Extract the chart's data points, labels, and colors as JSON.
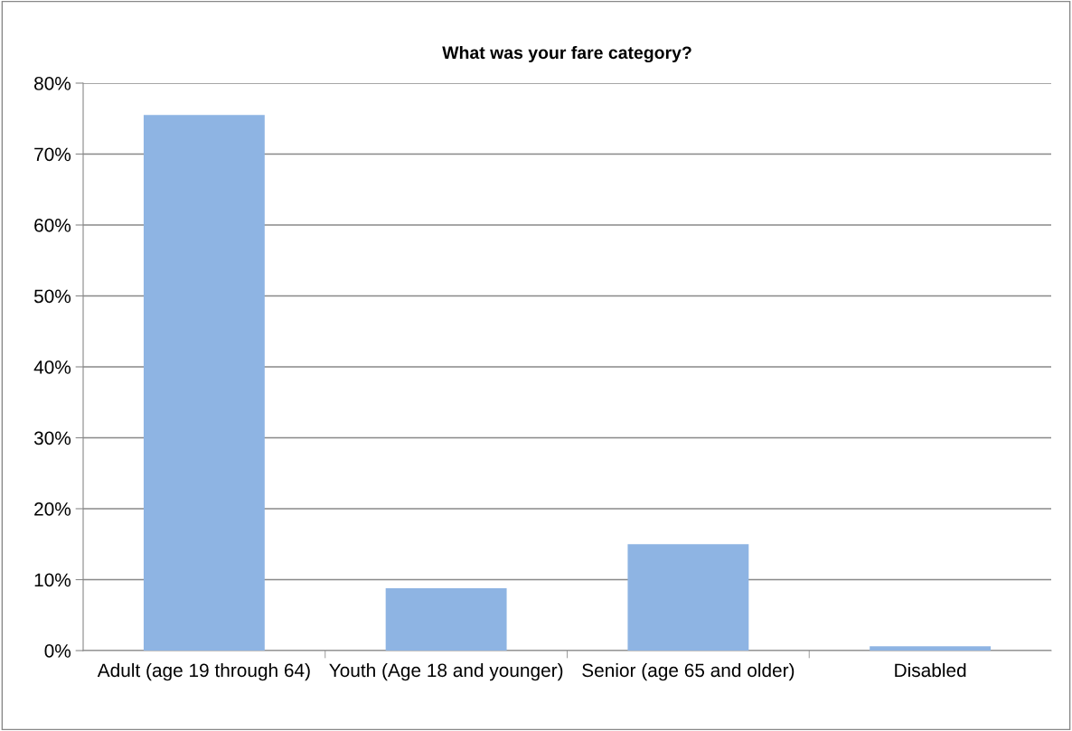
{
  "chart_data": {
    "type": "bar",
    "title": "What was your fare category?",
    "categories": [
      "Adult (age 19 through 64)",
      "Youth (Age 18 and younger)",
      "Senior (age 65 and older)",
      "Disabled"
    ],
    "values": [
      75.5,
      8.8,
      15.0,
      0.6
    ],
    "color": "#8eb4e3",
    "ylim": [
      0,
      80
    ],
    "yticks": [
      {
        "value": 0,
        "label": "0%"
      },
      {
        "value": 10,
        "label": "10%"
      },
      {
        "value": 20,
        "label": "20%"
      },
      {
        "value": 30,
        "label": "30%"
      },
      {
        "value": 40,
        "label": "40%"
      },
      {
        "value": 50,
        "label": "50%"
      },
      {
        "value": 60,
        "label": "60%"
      },
      {
        "value": 70,
        "label": "70%"
      },
      {
        "value": 80,
        "label": "80%"
      }
    ],
    "grid": "y",
    "legend": false
  }
}
